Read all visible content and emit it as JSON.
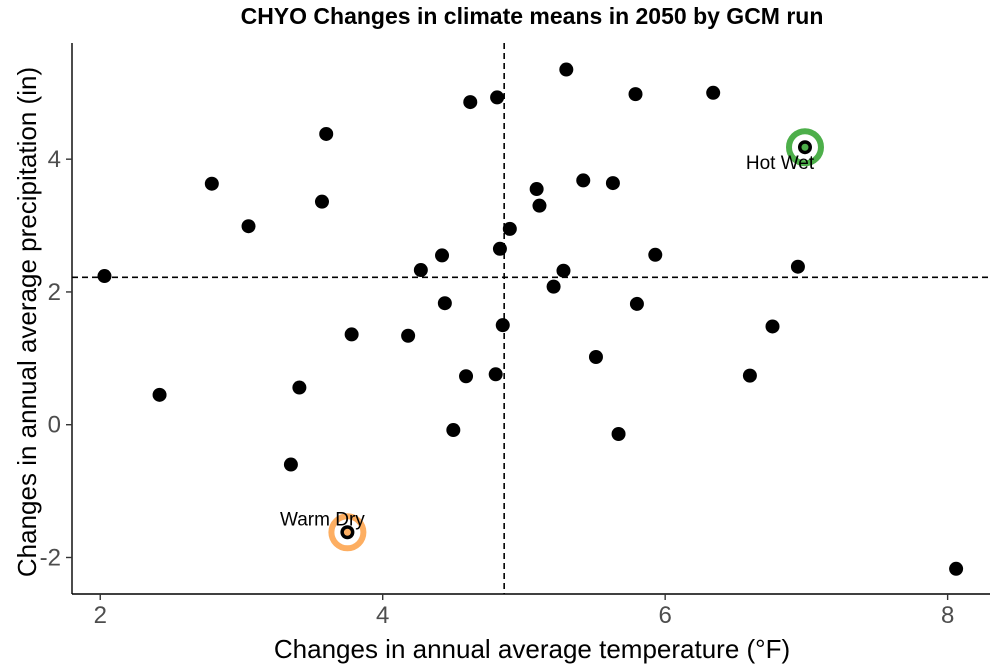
{
  "chart_data": {
    "type": "scatter",
    "title": "CHYO Changes in climate means in 2050 by GCM run",
    "xlabel": "Changes in annual average temperature (°F)",
    "ylabel": "Changes in annual average precipitation (in)",
    "xlim": [
      1.8,
      8.3
    ],
    "ylim": [
      -2.55,
      5.75
    ],
    "xticks": [
      2,
      4,
      6,
      8
    ],
    "yticks": [
      -2,
      0,
      2,
      4
    ],
    "reference_lines": {
      "x": 4.86,
      "y": 2.22
    },
    "point_color": "#000000",
    "points": [
      {
        "x": 2.03,
        "y": 2.24
      },
      {
        "x": 2.42,
        "y": 0.45
      },
      {
        "x": 2.79,
        "y": 3.63
      },
      {
        "x": 3.05,
        "y": 2.99
      },
      {
        "x": 3.35,
        "y": -0.6
      },
      {
        "x": 3.41,
        "y": 0.56
      },
      {
        "x": 3.57,
        "y": 3.36
      },
      {
        "x": 3.6,
        "y": 4.38
      },
      {
        "x": 3.78,
        "y": 1.36
      },
      {
        "x": 4.18,
        "y": 1.34
      },
      {
        "x": 4.27,
        "y": 2.33
      },
      {
        "x": 4.42,
        "y": 2.55
      },
      {
        "x": 4.44,
        "y": 1.83
      },
      {
        "x": 4.5,
        "y": -0.08
      },
      {
        "x": 4.59,
        "y": 0.73
      },
      {
        "x": 4.62,
        "y": 4.86
      },
      {
        "x": 4.8,
        "y": 0.76
      },
      {
        "x": 4.81,
        "y": 4.93
      },
      {
        "x": 4.83,
        "y": 2.65
      },
      {
        "x": 4.85,
        "y": 1.5
      },
      {
        "x": 4.9,
        "y": 2.95
      },
      {
        "x": 5.09,
        "y": 3.55
      },
      {
        "x": 5.11,
        "y": 3.3
      },
      {
        "x": 5.21,
        "y": 2.08
      },
      {
        "x": 5.28,
        "y": 2.32
      },
      {
        "x": 5.3,
        "y": 5.35
      },
      {
        "x": 5.42,
        "y": 3.68
      },
      {
        "x": 5.51,
        "y": 1.02
      },
      {
        "x": 5.63,
        "y": 3.64
      },
      {
        "x": 5.67,
        "y": -0.14
      },
      {
        "x": 5.79,
        "y": 4.98
      },
      {
        "x": 5.8,
        "y": 1.82
      },
      {
        "x": 5.93,
        "y": 2.56
      },
      {
        "x": 6.34,
        "y": 5.0
      },
      {
        "x": 6.6,
        "y": 0.74
      },
      {
        "x": 6.76,
        "y": 1.48
      },
      {
        "x": 6.94,
        "y": 2.38
      },
      {
        "x": 6.99,
        "y": 4.18
      },
      {
        "x": 8.06,
        "y": -2.17
      },
      {
        "x": 3.75,
        "y": -1.62
      }
    ],
    "highlights": [
      {
        "label": "Hot Wet",
        "x": 6.99,
        "y": 4.18,
        "color": "#4daf4a",
        "label_anchor": "below"
      },
      {
        "label": "Warm Dry",
        "x": 3.75,
        "y": -1.62,
        "color": "#fdae61",
        "label_anchor": "above"
      }
    ],
    "grid": false,
    "legend": "none"
  }
}
